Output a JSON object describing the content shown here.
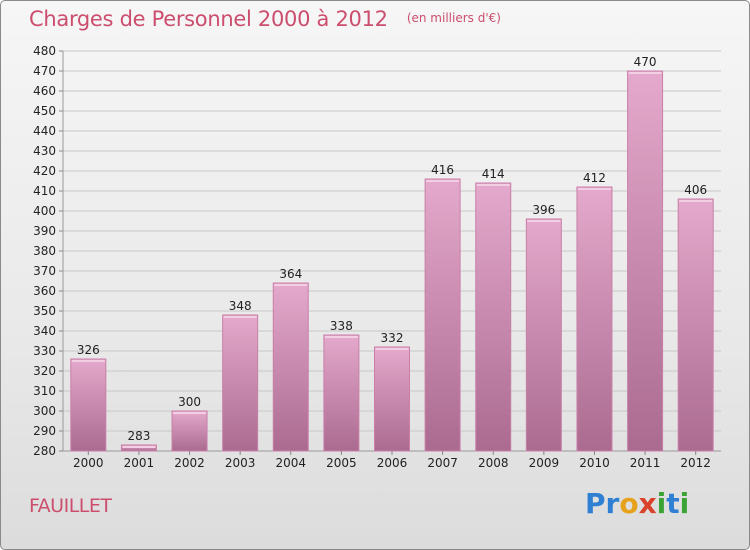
{
  "header": {
    "title": "Charges de Personnel 2000 à 2012",
    "subtitle": "(en milliers d'€)"
  },
  "footer": {
    "commune": "FAUILLET",
    "brand": "Proxiti",
    "brand_letters": [
      "P",
      "r",
      "o",
      "x",
      "i",
      "t",
      "i"
    ],
    "brand_colors": [
      "#2f7fd3",
      "#2f7fd3",
      "#e7a21b",
      "#d9432b",
      "#3aa334",
      "#2f7fd3",
      "#3aa334"
    ]
  },
  "colors": {
    "bar_top": "#e4a9cc",
    "bar_bottom": "#ab6b90",
    "bar_edge": "#c97fa9",
    "grid": "#c8c8c8",
    "title": "#cc4e6e"
  },
  "chart_data": {
    "type": "bar",
    "title": "Charges de Personnel 2000 à 2012",
    "subtitle": "(en milliers d'€)",
    "categories": [
      "2000",
      "2001",
      "2002",
      "2003",
      "2004",
      "2005",
      "2006",
      "2007",
      "2008",
      "2009",
      "2010",
      "2011",
      "2012"
    ],
    "values": [
      326,
      283,
      300,
      348,
      364,
      338,
      332,
      416,
      414,
      396,
      412,
      470,
      406
    ],
    "data_labels": [
      "326",
      "283",
      "300",
      "348",
      "364",
      "338",
      "332",
      "416",
      "414",
      "396",
      "412",
      "470",
      "406"
    ],
    "ylim": [
      280,
      480
    ],
    "ytick_step": 10,
    "grid": true,
    "legend": "none"
  }
}
